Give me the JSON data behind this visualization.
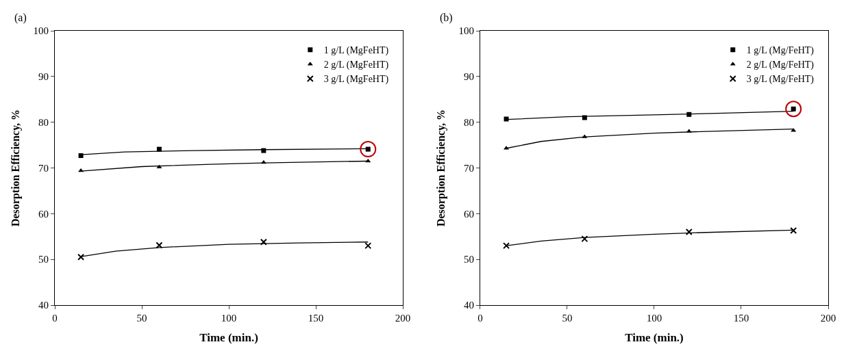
{
  "chart_data": [
    {
      "type": "scatter",
      "title": "(a)",
      "xlabel": "Time (min.)",
      "ylabel": "Desorption Efficiency, %",
      "xlim": [
        0,
        200
      ],
      "xticks": [
        0,
        50,
        100,
        150,
        200
      ],
      "ylim": [
        40,
        100
      ],
      "yticks": [
        40,
        50,
        60,
        70,
        80,
        90,
        100
      ],
      "legend": "top right",
      "series": [
        {
          "name": "1 g/L (MgFeHT)",
          "color": "#000000",
          "marker": "square",
          "x": [
            15,
            60,
            120,
            180
          ],
          "values": [
            72.7,
            74.1,
            73.8,
            74.1
          ]
        },
        {
          "name": "2 g/L (MgFeHT)",
          "color": "#000000",
          "marker": "triangle",
          "x": [
            15,
            60,
            120,
            180
          ],
          "values": [
            69.4,
            70.2,
            71.2,
            71.5
          ]
        },
        {
          "name": "3 g/L (MgFeHT)",
          "color": "#000000",
          "marker": "cross",
          "x": [
            15,
            60,
            120,
            180
          ],
          "values": [
            50.5,
            53.1,
            53.8,
            53.0
          ]
        },
        {
          "type": "line",
          "color": "#000000",
          "marker": "none",
          "x": [
            15,
            40,
            80,
            120,
            180
          ],
          "values": [
            72.9,
            73.5,
            73.8,
            74.0,
            74.2
          ]
        },
        {
          "type": "line",
          "color": "#000000",
          "marker": "none",
          "x": [
            15,
            50,
            90,
            120,
            180
          ],
          "values": [
            69.3,
            70.3,
            70.8,
            71.1,
            71.5
          ]
        },
        {
          "type": "line",
          "color": "#000000",
          "marker": "none",
          "x": [
            15,
            35,
            60,
            100,
            140,
            180
          ],
          "values": [
            50.6,
            51.8,
            52.6,
            53.3,
            53.6,
            53.8
          ]
        },
        {
          "color": "#c00000",
          "marker": "circle",
          "x": [
            180
          ],
          "values": [
            74.1
          ]
        }
      ]
    },
    {
      "type": "scatter",
      "title": "(b)",
      "xlabel": "Time (min.)",
      "ylabel": "Desorption Efficiency, %",
      "xlim": [
        0,
        200
      ],
      "xticks": [
        0,
        50,
        100,
        150,
        200
      ],
      "ylim": [
        40,
        100
      ],
      "yticks": [
        40,
        50,
        60,
        70,
        80,
        90,
        100
      ],
      "legend": "top right",
      "series": [
        {
          "name": "1 g/L (Mg/FeHT)",
          "color": "#000000",
          "marker": "square",
          "x": [
            15,
            60,
            120,
            180
          ],
          "values": [
            80.7,
            81.0,
            81.7,
            82.9
          ]
        },
        {
          "name": "2 g/L (Mg/FeHT)",
          "color": "#000000",
          "marker": "triangle",
          "x": [
            15,
            60,
            120,
            180
          ],
          "values": [
            74.3,
            76.8,
            78.0,
            78.2
          ]
        },
        {
          "name": "3 g/L (Mg/FeHT)",
          "color": "#000000",
          "marker": "cross",
          "x": [
            15,
            60,
            120,
            180
          ],
          "values": [
            53.0,
            54.5,
            56.0,
            56.3
          ]
        },
        {
          "type": "line",
          "color": "#000000",
          "marker": "none",
          "x": [
            15,
            50,
            100,
            140,
            180
          ],
          "values": [
            80.6,
            81.2,
            81.6,
            82.0,
            82.4
          ]
        },
        {
          "type": "line",
          "color": "#000000",
          "marker": "none",
          "x": [
            15,
            35,
            60,
            100,
            130,
            180
          ],
          "values": [
            74.3,
            75.8,
            76.8,
            77.6,
            78.0,
            78.5
          ]
        },
        {
          "type": "line",
          "color": "#000000",
          "marker": "none",
          "x": [
            15,
            35,
            60,
            100,
            130,
            180
          ],
          "values": [
            53.0,
            54.0,
            54.8,
            55.5,
            55.9,
            56.4
          ]
        },
        {
          "color": "#c00000",
          "marker": "circle",
          "x": [
            180
          ],
          "values": [
            82.9
          ]
        }
      ]
    }
  ]
}
